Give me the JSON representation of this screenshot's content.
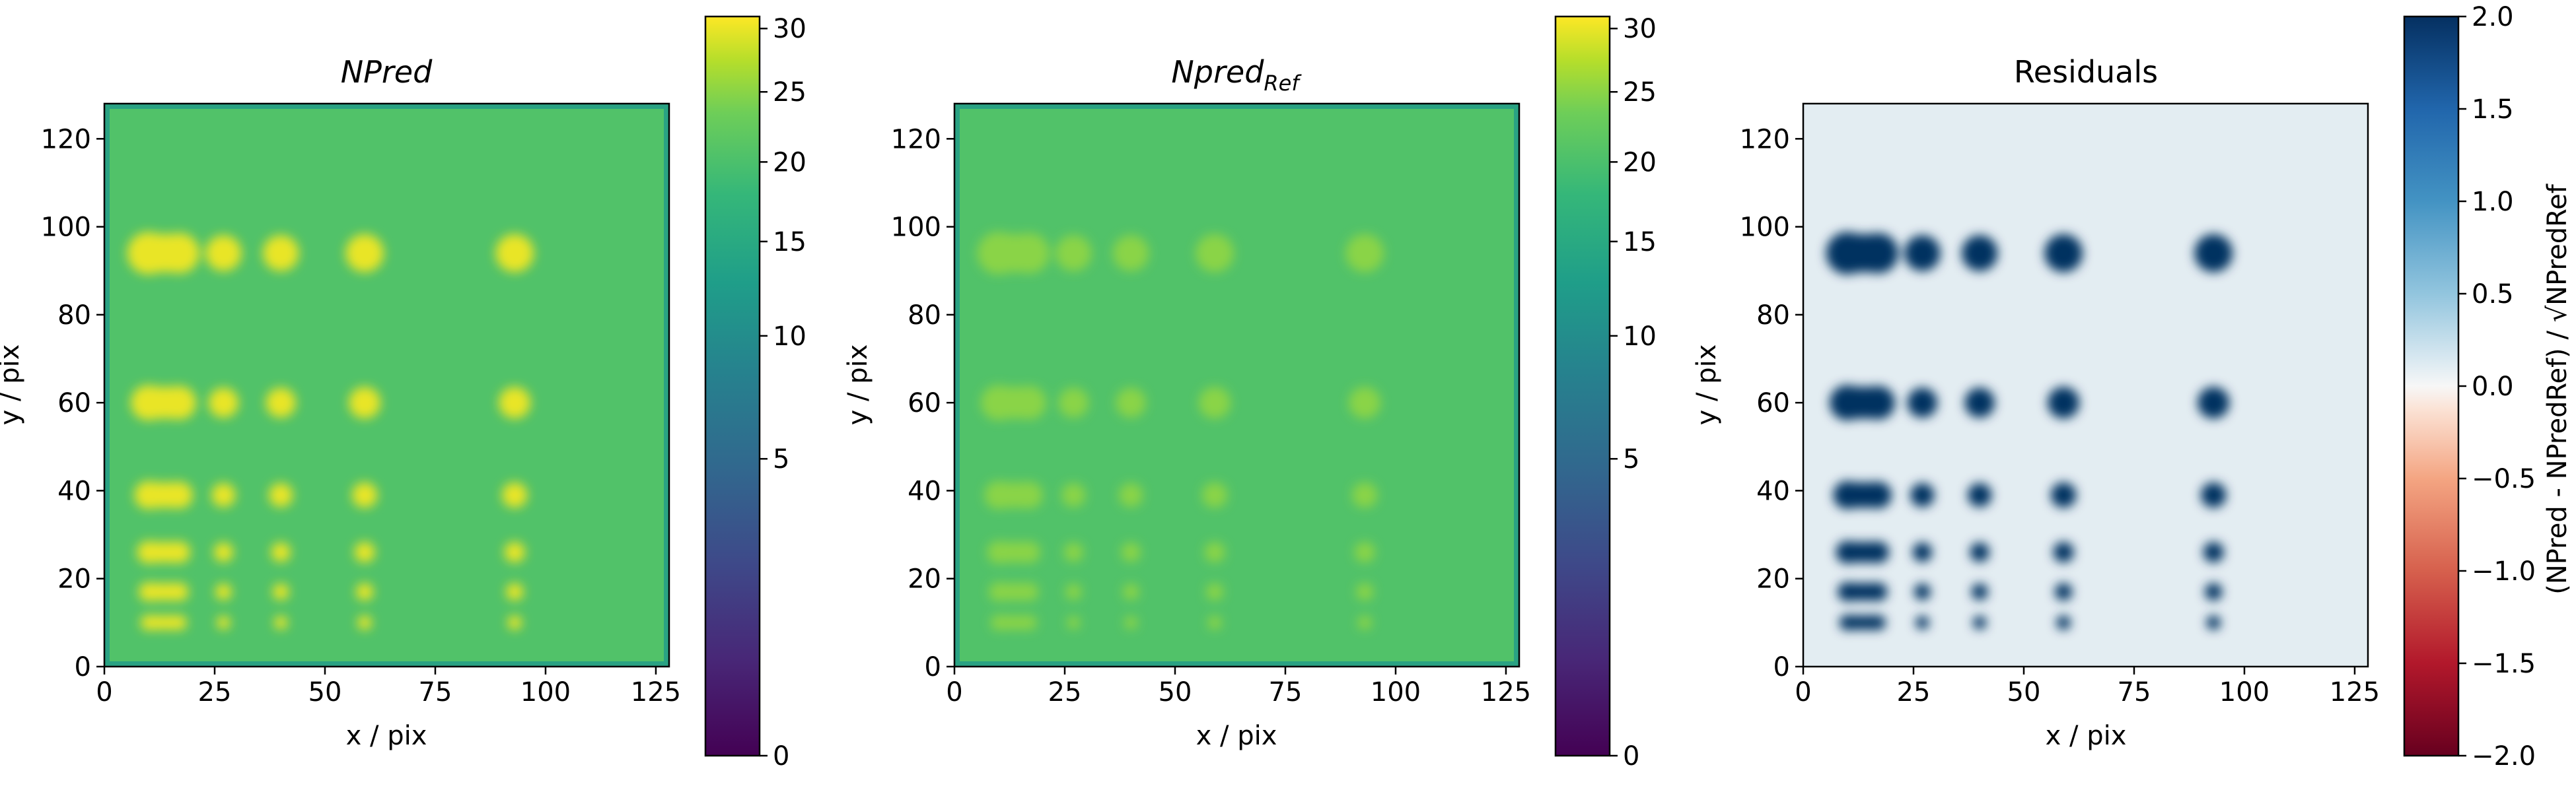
{
  "chart_data": [
    {
      "type": "heatmap",
      "title": "NPred",
      "title_style": "italic",
      "xlabel": "x / pix",
      "ylabel": "y / pix",
      "xlim": [
        0,
        128
      ],
      "ylim": [
        0,
        128
      ],
      "xticks": [
        0,
        25,
        50,
        75,
        100,
        125
      ],
      "yticks": [
        0,
        20,
        40,
        60,
        80,
        100,
        120
      ],
      "colormap": "viridis",
      "colorbar": {
        "scale": "sqrt",
        "ticks": [
          0,
          5,
          10,
          15,
          20,
          25,
          30
        ],
        "range": [
          0,
          31
        ]
      },
      "background_value": 20.5,
      "source_value": 30,
      "source_rows_y": [
        94,
        60,
        39,
        26,
        17,
        10
      ],
      "source_columns_x": [
        10,
        17,
        27,
        40,
        59,
        93
      ]
    },
    {
      "type": "heatmap",
      "title": "Npred",
      "title_subscript": "Ref",
      "title_style": "italic",
      "xlabel": "x / pix",
      "ylabel": "y / pix",
      "xlim": [
        0,
        128
      ],
      "ylim": [
        0,
        128
      ],
      "xticks": [
        0,
        25,
        50,
        75,
        100,
        125
      ],
      "yticks": [
        0,
        20,
        40,
        60,
        80,
        100,
        120
      ],
      "colormap": "viridis",
      "colorbar": {
        "scale": "sqrt",
        "ticks": [
          0,
          5,
          10,
          15,
          20,
          25,
          30
        ],
        "range": [
          0,
          31
        ]
      },
      "background_value": 20.5,
      "source_value": 25,
      "source_rows_y": [
        94,
        60,
        39,
        26,
        17,
        10
      ],
      "source_columns_x": [
        10,
        17,
        27,
        40,
        59,
        93
      ]
    },
    {
      "type": "heatmap",
      "title": "Residuals",
      "xlabel": "x / pix",
      "ylabel": "y / pix",
      "xlim": [
        0,
        128
      ],
      "ylim": [
        0,
        128
      ],
      "xticks": [
        0,
        25,
        50,
        75,
        100,
        125
      ],
      "yticks": [
        0,
        20,
        40,
        60,
        80,
        100,
        120
      ],
      "colormap": "RdBu",
      "colorbar": {
        "label": "(NPred - NPredRef) / √NPredRef",
        "ticks": [
          2.0,
          1.5,
          1.0,
          0.5,
          0.0,
          -0.5,
          -1.0,
          -1.5,
          -2.0
        ],
        "tick_labels": [
          "2.0",
          "1.5",
          "1.0",
          "0.5",
          "0.0",
          "−0.5",
          "−1.0",
          "−1.5",
          "−2.0"
        ],
        "range": [
          -2,
          2
        ]
      },
      "background_value": 0.1,
      "source_value": 2.0,
      "source_rows_y": [
        94,
        60,
        39,
        26,
        17,
        10
      ],
      "source_columns_x": [
        10,
        17,
        27,
        40,
        59,
        93
      ]
    }
  ]
}
